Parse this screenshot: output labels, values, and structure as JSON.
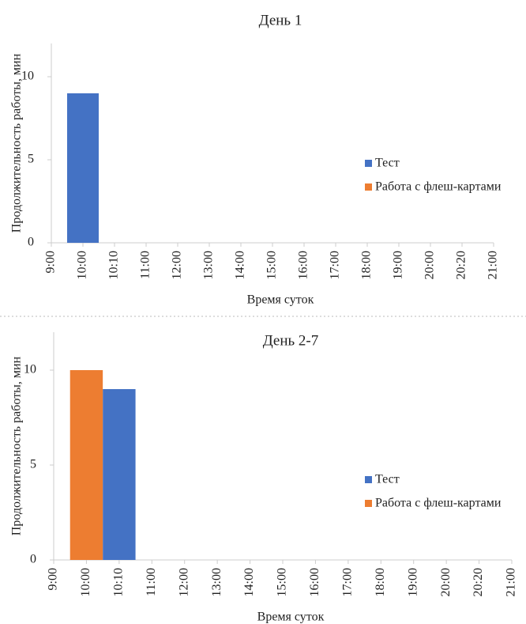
{
  "chart_data": [
    {
      "type": "bar",
      "title": "День 1",
      "y_label": "Продолжительность работы, мин",
      "x_label": "Время суток",
      "categories": [
        "9:00",
        "10:00",
        "10:10",
        "11:00",
        "12:00",
        "13:00",
        "14:00",
        "15:00",
        "16:00",
        "17:00",
        "18:00",
        "19:00",
        "20:00",
        "20:20",
        "21:00"
      ],
      "series": [
        {
          "name": "Тест",
          "color": "#4472c4",
          "values": [
            null,
            9,
            null,
            null,
            null,
            null,
            null,
            null,
            null,
            null,
            null,
            null,
            null,
            null,
            null
          ]
        },
        {
          "name": "Работа с флеш-картами",
          "color": "#ed7d31",
          "values": [
            null,
            null,
            null,
            null,
            null,
            null,
            null,
            null,
            null,
            null,
            null,
            null,
            null,
            null,
            null
          ]
        }
      ],
      "ylim": [
        0,
        12
      ],
      "yticks": [
        0,
        5,
        10
      ],
      "legend": "right"
    },
    {
      "type": "bar",
      "title": "День 2-7",
      "y_label": "Продолжительность работы, мин",
      "x_label": "Время суток",
      "categories": [
        "9:00",
        "10:00",
        "10:10",
        "11:00",
        "12:00",
        "13:00",
        "14:00",
        "15:00",
        "16:00",
        "17:00",
        "18:00",
        "19:00",
        "20:00",
        "20:20",
        "21:00"
      ],
      "series": [
        {
          "name": "Тест",
          "color": "#4472c4",
          "values": [
            null,
            null,
            9,
            null,
            null,
            null,
            null,
            null,
            null,
            null,
            null,
            null,
            null,
            null,
            null
          ]
        },
        {
          "name": "Работа с флеш-картами",
          "color": "#ed7d31",
          "values": [
            null,
            10,
            null,
            null,
            null,
            null,
            null,
            null,
            null,
            null,
            null,
            null,
            null,
            null,
            null
          ]
        }
      ],
      "ylim": [
        0,
        12
      ],
      "yticks": [
        0,
        5,
        10
      ],
      "legend": "right"
    }
  ]
}
